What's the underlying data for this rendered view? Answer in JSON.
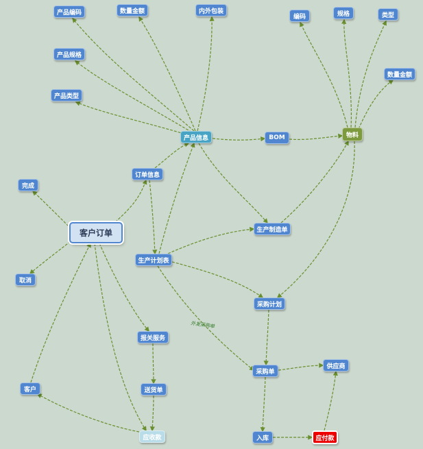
{
  "nodes": {
    "kehu_dingdan": "客户订单",
    "chanpin_xinxi": "产品信息",
    "chanpin_bianma": "产品编码",
    "shuliang_jine_1": "数量金额",
    "neiwai_baozhuang": "内外包装",
    "chanpin_guige": "产品规格",
    "chanpin_leixing": "产品类型",
    "bom": "BOM",
    "wuliao": "物料",
    "bianma": "编码",
    "guige": "规格",
    "leixing": "类型",
    "shuliang_jine_2": "数量金额",
    "dingdan_xinxi": "订单信息",
    "wancheng": "完成",
    "quxiao": "取消",
    "shengchan_zhizaodan": "生产制造单",
    "shengchan_jihuabiao": "生产计划表",
    "caigou_jihua": "采购计划",
    "baoguan_fuwu": "报关服务",
    "songhuodan": "送货单",
    "kehu": "客户",
    "yingshoukuan": "应收款",
    "caigoudan": "采购单",
    "gongyingshang": "供应商",
    "ruku": "入库",
    "yingfukuan": "应付款"
  },
  "edge_labels": {
    "waifa_caigou": "外发采购单"
  },
  "colors": {
    "edge": "#6a8f2f",
    "node_blue": "#4f86cf",
    "node_teal": "#48a4c4",
    "node_olive": "#7e9a3e",
    "node_red": "#ee0000"
  }
}
